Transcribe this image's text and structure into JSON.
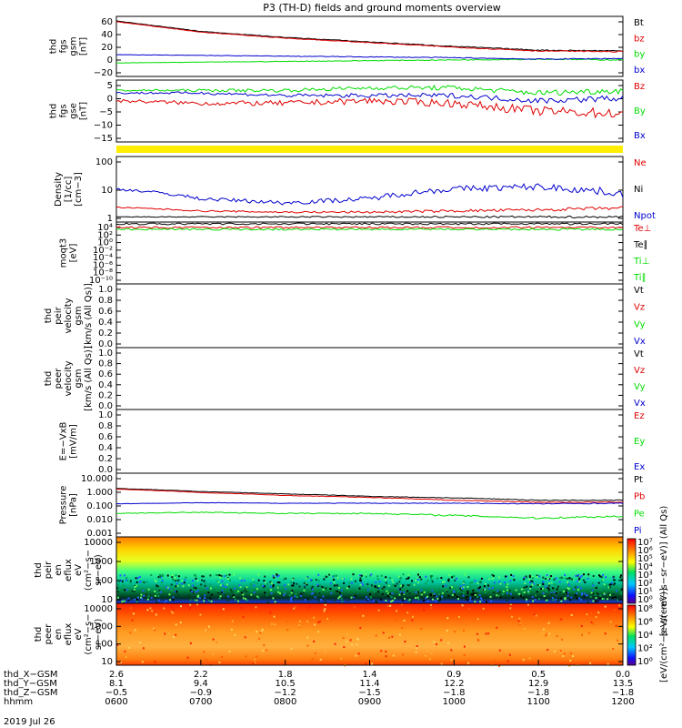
{
  "title": "P3 (TH-D) fields and ground moments overview",
  "date_label": "2019 Jul 26",
  "colors": {
    "black": "#000000",
    "red": "#e00000",
    "green": "#00dd00",
    "blue": "#0000cc",
    "yellow": "#ffee00"
  },
  "panels": [
    {
      "id": "fgs_gsm",
      "ylabel": [
        "thd",
        "fgs",
        "gsm",
        "[nT]"
      ],
      "yticks": [
        "60",
        "40",
        "20",
        "0",
        "−20"
      ],
      "legend": [
        {
          "text": "Bt",
          "color": "black"
        },
        {
          "text": "bz",
          "color": "red"
        },
        {
          "text": "by",
          "color": "green"
        },
        {
          "text": "bx",
          "color": "blue"
        }
      ]
    },
    {
      "id": "fgs_dsl",
      "ylabel": [
        "thd",
        "fgs",
        "gse",
        "[nT]"
      ],
      "yticks": [
        "5",
        "0",
        "−5",
        "−10",
        "−15"
      ],
      "legend": [
        {
          "text": "Bz",
          "color": "red"
        },
        {
          "text": "By",
          "color": "green"
        },
        {
          "text": "Bx",
          "color": "blue"
        }
      ]
    },
    {
      "id": "density",
      "ylabel": [
        "Density",
        "[1/cc]",
        "[cm−3]"
      ],
      "yticks": [
        "100",
        "10",
        "1"
      ],
      "legend": [
        {
          "text": "Ne",
          "color": "red"
        },
        {
          "text": "Ni",
          "color": "black"
        },
        {
          "text": "Npot",
          "color": "blue"
        }
      ]
    },
    {
      "id": "temp",
      "ylabel": [
        "moqt3",
        "[eV]"
      ],
      "yticks": [
        "10⁴",
        "10²",
        "10⁰",
        "10⁻²",
        "10⁻⁴",
        "10⁻⁶",
        "10⁻⁸",
        "10⁻¹⁰"
      ],
      "legend": [
        {
          "text": "Te⊥",
          "color": "red"
        },
        {
          "text": "Te∥",
          "color": "black"
        },
        {
          "text": "Ti⊥",
          "color": "green"
        },
        {
          "text": "Ti∥",
          "color": "green"
        }
      ]
    },
    {
      "id": "peir_vel",
      "ylabel": [
        "thd",
        "peir",
        "velocity",
        "gsm",
        "[km/s (All Qs)]"
      ],
      "yticks": [
        "1.0",
        "0.8",
        "0.6",
        "0.4",
        "0.2",
        "0.0"
      ],
      "legend": [
        {
          "text": "Vt",
          "color": "black"
        },
        {
          "text": "Vz",
          "color": "red"
        },
        {
          "text": "Vy",
          "color": "green"
        },
        {
          "text": "Vx",
          "color": "blue"
        }
      ]
    },
    {
      "id": "peer_vel",
      "ylabel": [
        "thd",
        "peer",
        "velocity",
        "gsm",
        "[km/s (All Qs)]"
      ],
      "yticks": [
        "1.0",
        "0.8",
        "0.6",
        "0.4",
        "0.2",
        "0.0"
      ],
      "legend": [
        {
          "text": "Vt",
          "color": "black"
        },
        {
          "text": "Vz",
          "color": "red"
        },
        {
          "text": "Vy",
          "color": "green"
        },
        {
          "text": "Vx",
          "color": "blue"
        }
      ]
    },
    {
      "id": "efield",
      "ylabel": [
        "E=−VxB",
        "[mV/m]"
      ],
      "yticks": [
        "1.0",
        "0.8",
        "0.6",
        "0.4",
        "0.2",
        "0.0"
      ],
      "legend": [
        {
          "text": "Ez",
          "color": "red"
        },
        {
          "text": "Ey",
          "color": "green"
        },
        {
          "text": "Ex",
          "color": "blue"
        }
      ]
    },
    {
      "id": "pressure",
      "ylabel": [
        "Pressure",
        "[nPa]"
      ],
      "yticks": [
        "10.000",
        "1.000",
        "0.100",
        "0.010",
        "0.001"
      ],
      "legend": [
        {
          "text": "Pt",
          "color": "black"
        },
        {
          "text": "Pb",
          "color": "red"
        },
        {
          "text": "Pe",
          "color": "green"
        },
        {
          "text": "Pi",
          "color": "blue"
        }
      ]
    },
    {
      "id": "peir_eflux",
      "ylabel": [
        "thd",
        "peir",
        "en",
        "eflux",
        "eV",
        "(cm²−s−",
        "sr−eV)"
      ],
      "yticks": [
        "10000",
        "1000",
        "100",
        "10"
      ]
    },
    {
      "id": "peer_eflux",
      "ylabel": [
        "thd",
        "peer",
        "en",
        "eflux",
        "eV",
        "(cm²−s−",
        "sr−eV)"
      ],
      "yticks": [
        "10000",
        "1000",
        "100",
        "10"
      ]
    }
  ],
  "colorbars": [
    {
      "label": "[eV/(cm²−s−sr−eV)] (All Qs)",
      "ticks": [
        "10⁷",
        "10⁶",
        "10⁵",
        "10⁴",
        "10³",
        "10²",
        "10¹",
        "10⁰"
      ]
    },
    {
      "label": "[eV/(cm²−s−sr−eV)]",
      "ticks": [
        "10⁸",
        "10⁶",
        "10⁴",
        "10²",
        "10⁰"
      ]
    }
  ],
  "xaxis": {
    "rows": [
      {
        "label": "thd_X−GSM",
        "values": [
          "2.6",
          "2.2",
          "1.8",
          "1.4",
          "0.9",
          "0.5",
          "0.0"
        ]
      },
      {
        "label": "thd_Y−GSM",
        "values": [
          "8.1",
          "9.4",
          "10.5",
          "11.4",
          "12.2",
          "12.9",
          "13.5"
        ]
      },
      {
        "label": "thd_Z−GSM",
        "values": [
          "−0.5",
          "−0.9",
          "−1.2",
          "−1.5",
          "−1.8",
          "−1.8",
          "−1.8"
        ]
      },
      {
        "label": "hhmm",
        "values": [
          "0600",
          "0700",
          "0800",
          "0900",
          "1000",
          "1100",
          "1200"
        ]
      }
    ]
  },
  "chart_data": [
    {
      "type": "line",
      "title": "thd fgs gsm [nT]",
      "x": [
        "0600",
        "0700",
        "0800",
        "0900",
        "1000",
        "1100",
        "1200"
      ],
      "ylim": [
        -20,
        60
      ],
      "series": [
        {
          "name": "Bt",
          "values": [
            54,
            40,
            32,
            26,
            20,
            15,
            14
          ]
        },
        {
          "name": "bz",
          "values": [
            53,
            39,
            31,
            25,
            19,
            14,
            13
          ]
        },
        {
          "name": "by",
          "values": [
            -2,
            -1,
            0,
            1,
            2,
            3,
            2
          ]
        },
        {
          "name": "bx",
          "values": [
            9,
            8,
            7,
            6,
            5,
            3,
            4
          ]
        }
      ]
    },
    {
      "type": "line",
      "title": "thd fgs gse [nT]",
      "x": [
        "0600",
        "0700",
        "0800",
        "0900",
        "1000",
        "1100",
        "1200"
      ],
      "ylim": [
        -18,
        6
      ],
      "series": [
        {
          "name": "Bz",
          "values": [
            -2,
            -3,
            -3,
            -2,
            -3,
            -6,
            -7
          ]
        },
        {
          "name": "By",
          "values": [
            2,
            2,
            2,
            3,
            3,
            1,
            2
          ]
        },
        {
          "name": "Bx",
          "values": [
            1,
            1,
            0,
            0,
            0,
            -2,
            -1
          ]
        }
      ]
    },
    {
      "type": "line",
      "title": "Density [cm−3]",
      "x": [
        "0600",
        "0700",
        "0800",
        "0900",
        "1000",
        "1100",
        "1200"
      ],
      "ylim": [
        0.3,
        200
      ],
      "yscale": "log",
      "series": [
        {
          "name": "Ne",
          "values": [
            1.3,
            0.9,
            0.8,
            0.8,
            0.9,
            1.0,
            1.2
          ]
        },
        {
          "name": "Ni",
          "values": [
            0.5,
            0.5,
            0.5,
            0.5,
            0.5,
            0.5,
            0.5
          ]
        },
        {
          "name": "Npot",
          "values": [
            8,
            3,
            2,
            3,
            8,
            10,
            5
          ]
        }
      ]
    },
    {
      "type": "line",
      "title": "Pressure [nPa]",
      "x": [
        "0600",
        "0700",
        "0800",
        "0900",
        "1000",
        "1100",
        "1200"
      ],
      "ylim": [
        0.001,
        10
      ],
      "yscale": "log",
      "series": [
        {
          "name": "Pt",
          "values": [
            1.1,
            0.7,
            0.5,
            0.35,
            0.28,
            0.2,
            0.2
          ]
        },
        {
          "name": "Pb",
          "values": [
            1.0,
            0.6,
            0.4,
            0.3,
            0.2,
            0.15,
            0.15
          ]
        },
        {
          "name": "Pe",
          "values": [
            0.03,
            0.035,
            0.03,
            0.03,
            0.022,
            0.015,
            0.02
          ]
        },
        {
          "name": "Pi",
          "values": [
            0.12,
            0.14,
            0.13,
            0.13,
            0.13,
            0.12,
            0.13
          ]
        }
      ]
    }
  ]
}
